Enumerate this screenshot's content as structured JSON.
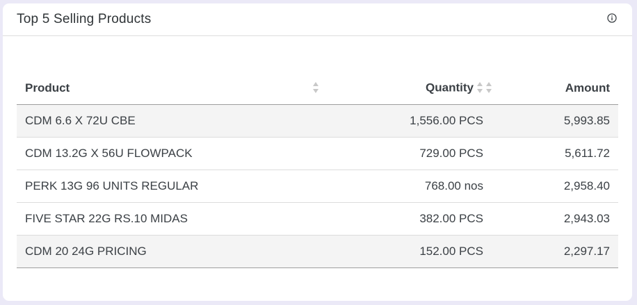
{
  "widget": {
    "title": "Top 5 Selling Products",
    "info_icon": "info-circle-icon"
  },
  "table": {
    "columns": {
      "product": "Product",
      "quantity": "Quantity",
      "amount": "Amount"
    },
    "rows": [
      {
        "product": "CDM 6.6 X 72U CBE",
        "quantity": "1,556.00 PCS",
        "amount": "5,993.85"
      },
      {
        "product": "CDM 13.2G X 56U FLOWPACK",
        "quantity": "729.00 PCS",
        "amount": "5,611.72"
      },
      {
        "product": "PERK 13G 96 UNITS REGULAR",
        "quantity": "768.00 nos",
        "amount": "2,958.40"
      },
      {
        "product": "FIVE STAR 22G RS.10 MIDAS",
        "quantity": "382.00 PCS",
        "amount": "2,943.03"
      },
      {
        "product": "CDM 20 24G PRICING",
        "quantity": "152.00 PCS",
        "amount": "2,297.17"
      }
    ],
    "sort_icon": "sort-arrows-icon",
    "colors": {
      "header_border": "#9e9e9e",
      "striped_row": "#f4f4f4",
      "sort_icon": "#c8c8c8"
    }
  }
}
